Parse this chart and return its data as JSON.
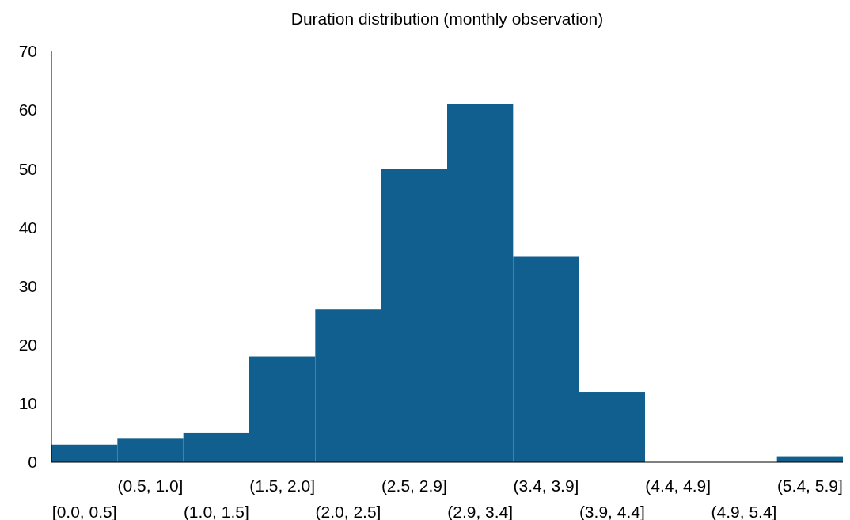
{
  "chart_data": {
    "type": "bar",
    "title": "Duration distribution (monthly observation)",
    "categories": [
      "[0.0, 0.5]",
      "(0.5, 1.0]",
      "(1.0, 1.5]",
      "(1.5, 2.0]",
      "(2.0, 2.5]",
      "(2.5, 2.9]",
      "(2.9, 3.4]",
      "(3.4, 3.9]",
      "(3.9, 4.4]",
      "(4.4, 4.9]",
      "(4.9, 5.4]",
      "(5.4, 5.9]"
    ],
    "values": [
      3,
      4,
      5,
      18,
      26,
      50,
      61,
      35,
      12,
      0,
      0,
      1
    ],
    "color": "#115f8e",
    "ylim": [
      0,
      70
    ],
    "yticks": [
      0,
      10,
      20,
      30,
      40,
      50,
      60,
      70
    ],
    "grid": false
  }
}
